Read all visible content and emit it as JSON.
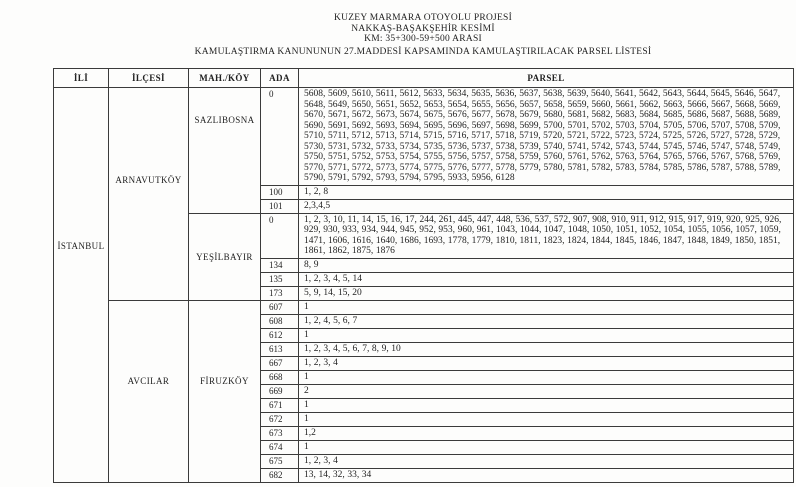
{
  "title": {
    "line1": "KUZEY MARMARA OTOYOLU PROJESİ",
    "line2": "NAKKAŞ-BAŞAKŞEHİR KESİMİ",
    "line3": "KM: 35+300-59+500 ARASI",
    "line4": "KAMULAŞTIRMA KANUNUNUN 27.MADDESİ KAPSAMINDA KAMULAŞTIRILACAK PARSEL LİSTESİ"
  },
  "table": {
    "headers": [
      "İLİ",
      "İLÇESİ",
      "MAH./KÖY",
      "ADA",
      "PARSEL"
    ],
    "il": "İSTANBUL",
    "groups": [
      {
        "ilce": "ARNAVUTKÖY",
        "koyler": [
          {
            "name": "SAZLIBOSNA",
            "rows": [
              {
                "ada": "0",
                "parsel": "5608, 5609, 5610, 5611, 5612, 5633, 5634, 5635, 5636, 5637, 5638, 5639, 5640, 5641, 5642, 5643, 5644, 5645, 5646, 5647, 5648, 5649, 5650, 5651, 5652, 5653, 5654, 5655, 5656, 5657, 5658, 5659, 5660, 5661, 5662, 5663, 5666, 5667, 5668, 5669, 5670, 5671, 5672, 5673, 5674, 5675, 5676, 5677, 5678, 5679, 5680, 5681, 5682, 5683, 5684, 5685, 5686, 5687, 5688, 5689, 5690, 5691, 5692, 5693, 5694, 5695, 5696, 5697, 5698, 5699, 5700, 5701, 5702, 5703, 5704, 5705, 5706, 5707, 5708, 5709, 5710, 5711, 5712, 5713, 5714, 5715, 5716, 5717, 5718, 5719, 5720, 5721, 5722, 5723, 5724, 5725, 5726, 5727, 5728, 5729, 5730, 5731, 5732, 5733, 5734, 5735, 5736, 5737, 5738, 5739, 5740, 5741, 5742, 5743, 5744, 5745, 5746, 5747, 5748, 5749, 5750, 5751, 5752, 5753, 5754, 5755, 5756, 5757, 5758, 5759, 5760, 5761, 5762, 5763, 5764, 5765, 5766, 5767, 5768, 5769, 5770, 5771, 5772, 5773, 5774, 5775, 5776, 5777, 5778, 5779, 5780, 5781, 5782, 5783, 5784, 5785, 5786, 5787, 5788, 5789, 5790, 5791, 5792, 5793, 5794, 5795, 5933, 5956, 6128"
              },
              {
                "ada": "100",
                "parsel": "1, 2, 8"
              },
              {
                "ada": "101",
                "parsel": "2,3,4,5"
              }
            ]
          },
          {
            "name": "YEŞİLBAYIR",
            "rows": [
              {
                "ada": "0",
                "parsel": "1, 2, 3, 10, 11, 14, 15, 16, 17, 244, 261, 445, 447, 448, 536, 537, 572, 907, 908, 910, 911, 912, 915, 917, 919, 920, 925, 926, 929, 930, 933, 934, 944, 945, 952, 953, 960, 961, 1043, 1044, 1047, 1048, 1050, 1051, 1052, 1054, 1055, 1056, 1057, 1059, 1471, 1606, 1616, 1640, 1686, 1693, 1778, 1779, 1810, 1811, 1823, 1824, 1844, 1845, 1846, 1847, 1848, 1849, 1850, 1851, 1861, 1862, 1875, 1876"
              },
              {
                "ada": "134",
                "parsel": "8, 9"
              },
              {
                "ada": "135",
                "parsel": "1, 2, 3, 4, 5, 14"
              },
              {
                "ada": "173",
                "parsel": "5, 9, 14, 15, 20"
              }
            ]
          }
        ]
      },
      {
        "ilce": "AVCILAR",
        "koyler": [
          {
            "name": "FİRUZKÖY",
            "rows": [
              {
                "ada": "607",
                "parsel": "1"
              },
              {
                "ada": "608",
                "parsel": "1, 2, 4, 5, 6, 7"
              },
              {
                "ada": "612",
                "parsel": "1"
              },
              {
                "ada": "613",
                "parsel": "1, 2, 3, 4, 5, 6, 7, 8, 9, 10"
              },
              {
                "ada": "667",
                "parsel": "1, 2, 3, 4"
              },
              {
                "ada": "668",
                "parsel": "1"
              },
              {
                "ada": "669",
                "parsel": "2"
              },
              {
                "ada": "671",
                "parsel": "1"
              },
              {
                "ada": "672",
                "parsel": "1"
              },
              {
                "ada": "673",
                "parsel": "1,2"
              },
              {
                "ada": "674",
                "parsel": "1"
              },
              {
                "ada": "675",
                "parsel": "1, 2, 3, 4"
              },
              {
                "ada": "682",
                "parsel": "13, 14, 32, 33, 34"
              }
            ]
          }
        ]
      }
    ]
  }
}
